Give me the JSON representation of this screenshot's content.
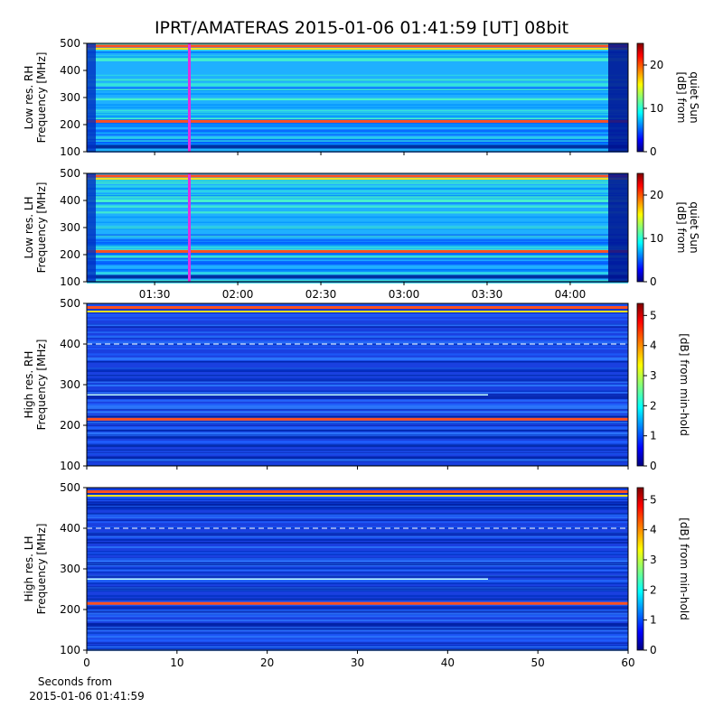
{
  "title": "IPRT/AMATERAS 2015-01-06 01:41:59 [UT]   08bit",
  "xlabel": [
    "Seconds from",
    "2015-01-06 01:41:59"
  ],
  "chart_data": [
    {
      "type": "heatmap",
      "ylabel": [
        "Low res. RH",
        "Frequency [MHz]"
      ],
      "ylim": [
        100,
        500
      ],
      "yticks": [
        100,
        200,
        300,
        400,
        500
      ],
      "xlim": [
        65.5,
        260.9
      ],
      "colorbar_label": [
        "[dB] from",
        "quiet Sun"
      ],
      "clim": [
        0,
        25
      ],
      "cticks": [
        0,
        10,
        20
      ]
    },
    {
      "type": "heatmap",
      "ylabel": [
        "Low res. LH",
        "Frequency [MHz]"
      ],
      "ylim": [
        100,
        500
      ],
      "yticks": [
        100,
        200,
        300,
        400,
        500
      ],
      "xlim": [
        65.5,
        260.9
      ],
      "xticks": [
        {
          "value": 90,
          "label": "01:30"
        },
        {
          "value": 120,
          "label": "02:00"
        },
        {
          "value": 150,
          "label": "02:30"
        },
        {
          "value": 180,
          "label": "03:00"
        },
        {
          "value": 210,
          "label": "03:30"
        },
        {
          "value": 240,
          "label": "04:00"
        }
      ],
      "colorbar_label": [
        "[dB] from",
        "quiet Sun"
      ],
      "clim": [
        0,
        25
      ],
      "cticks": [
        0,
        10,
        20
      ]
    },
    {
      "type": "heatmap",
      "ylabel": [
        "High res. RH",
        "Frequency [MHz]"
      ],
      "ylim": [
        100,
        500
      ],
      "yticks": [
        100,
        200,
        300,
        400,
        500
      ],
      "xlim": [
        0,
        60
      ],
      "colorbar_label": [
        "[dB] from min-hold"
      ],
      "clim": [
        0,
        5.4
      ],
      "cticks": [
        0,
        1,
        2,
        3,
        4,
        5
      ]
    },
    {
      "type": "heatmap",
      "ylabel": [
        "High res. LH",
        "Frequency [MHz]"
      ],
      "ylim": [
        100,
        500
      ],
      "yticks": [
        100,
        200,
        300,
        400,
        500
      ],
      "xlim": [
        0,
        60
      ],
      "xticks": [
        0,
        10,
        20,
        30,
        40,
        50,
        60
      ],
      "colorbar_label": [
        "[dB] from min-hold"
      ],
      "clim": [
        0,
        5.4
      ],
      "cticks": [
        0,
        1,
        2,
        3,
        4,
        5
      ]
    }
  ]
}
